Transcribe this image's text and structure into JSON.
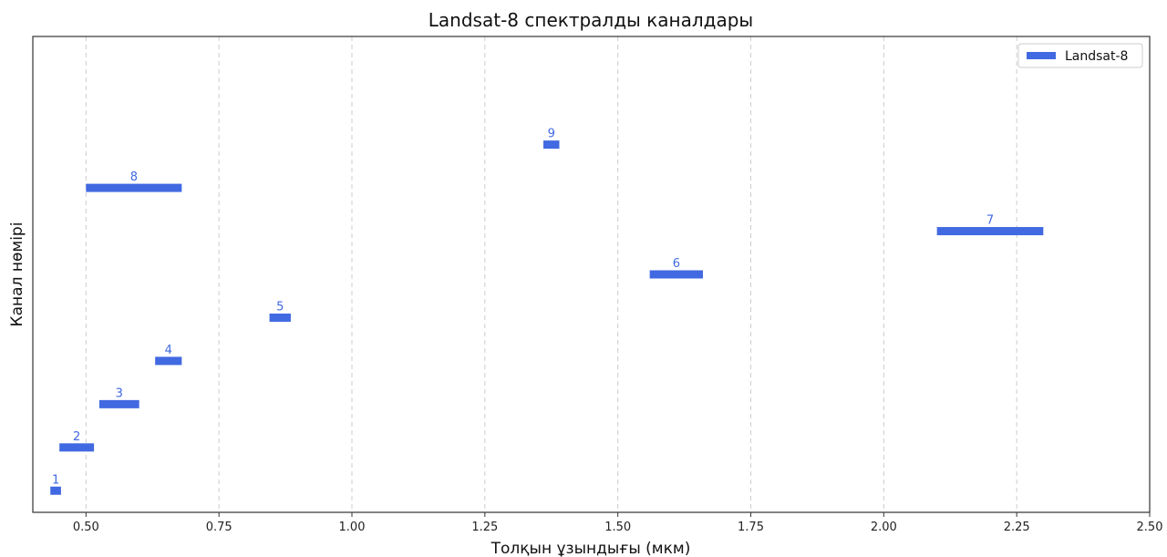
{
  "chart_data": {
    "type": "bar",
    "orientation": "horizontal-range",
    "title": "Landsat-8 спектралды каналдары",
    "xlabel": "Толқын ұзындығы (мкм)",
    "ylabel": "Канал нөмірі",
    "xlim": [
      0.4,
      2.5
    ],
    "ylim": [
      0.5,
      11.5
    ],
    "x_ticks": [
      "0.50",
      "0.75",
      "1.00",
      "1.25",
      "1.50",
      "1.75",
      "2.00",
      "2.25",
      "2.50"
    ],
    "grid": "vertical dashed",
    "legend": {
      "position": "top-right",
      "entries": [
        "Landsat-8"
      ]
    },
    "series": [
      {
        "name": "Landsat-8",
        "color": "#4169E1",
        "bands": [
          {
            "label": "1",
            "band": 1,
            "start": 0.433,
            "end": 0.453
          },
          {
            "label": "2",
            "band": 2,
            "start": 0.45,
            "end": 0.515
          },
          {
            "label": "3",
            "band": 3,
            "start": 0.525,
            "end": 0.6
          },
          {
            "label": "4",
            "band": 4,
            "start": 0.63,
            "end": 0.68
          },
          {
            "label": "5",
            "band": 5,
            "start": 0.845,
            "end": 0.885
          },
          {
            "label": "6",
            "band": 6,
            "start": 1.56,
            "end": 1.66
          },
          {
            "label": "7",
            "band": 7,
            "start": 2.1,
            "end": 2.3
          },
          {
            "label": "8",
            "band": 8,
            "start": 0.5,
            "end": 0.68
          },
          {
            "label": "9",
            "band": 9,
            "start": 1.36,
            "end": 1.39
          }
        ]
      }
    ]
  }
}
